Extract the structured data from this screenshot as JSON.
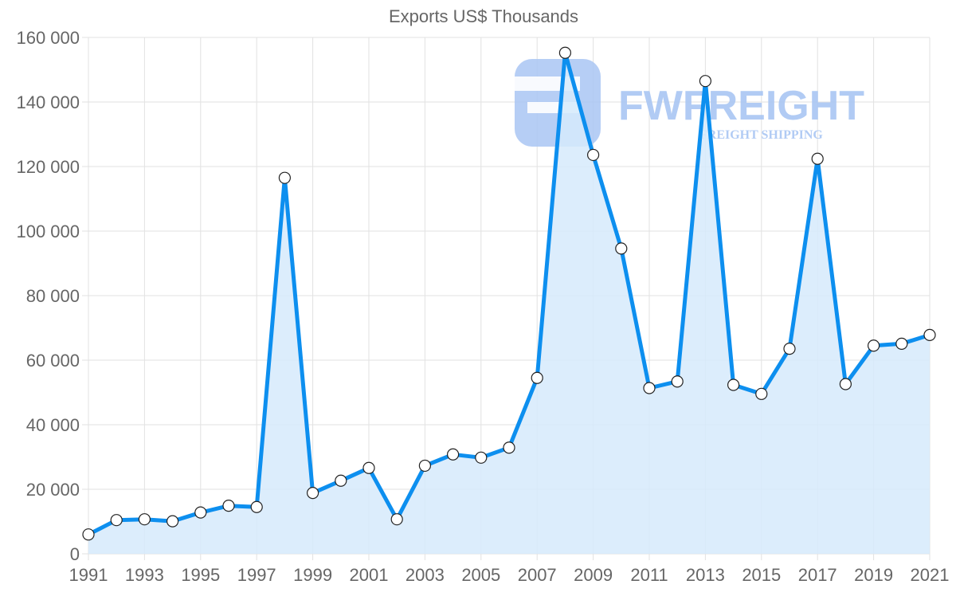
{
  "chart_data": {
    "type": "line",
    "title": "Exports US$ Thousands",
    "xlabel": "",
    "ylabel": "",
    "ylim": [
      0,
      160000
    ],
    "xlim": [
      1991,
      2021
    ],
    "grid": true,
    "legend": null,
    "fill": true,
    "y_ticks": [
      0,
      20000,
      40000,
      60000,
      80000,
      100000,
      120000,
      140000,
      160000
    ],
    "y_tick_labels": [
      "0",
      "20 000",
      "40 000",
      "60 000",
      "80 000",
      "100 000",
      "120 000",
      "140 000",
      "160 000"
    ],
    "x_tick_labels": [
      "1991",
      "1993",
      "1995",
      "1997",
      "1999",
      "2001",
      "2003",
      "2005",
      "2007",
      "2009",
      "2011",
      "2013",
      "2015",
      "2017",
      "2019",
      "2021"
    ],
    "x": [
      1991,
      1992,
      1993,
      1994,
      1995,
      1996,
      1997,
      1998,
      1999,
      2000,
      2001,
      2002,
      2003,
      2004,
      2005,
      2006,
      2007,
      2008,
      2009,
      2010,
      2011,
      2012,
      2013,
      2014,
      2015,
      2016,
      2017,
      2018,
      2019,
      2020,
      2021
    ],
    "series": [
      {
        "name": "Exports US$ Thousands",
        "color": "#0d8fef",
        "fill_color": "#d6eafc",
        "values": [
          6000,
          10450,
          10700,
          10100,
          12800,
          14900,
          14500,
          116500,
          18850,
          22650,
          26600,
          10700,
          27300,
          30800,
          29800,
          32900,
          54500,
          155250,
          123600,
          94600,
          51350,
          53400,
          146500,
          52350,
          49550,
          63550,
          122400,
          52600,
          64500,
          65100,
          67800
        ]
      }
    ]
  },
  "watermark": {
    "brand": "FWFREIGHT",
    "tagline": "FREIGHT SHIPPING",
    "color": "#a9c6f3"
  },
  "colors": {
    "grid": "#e2e2e2",
    "axis_text": "#666666",
    "point_fill": "#ffffff",
    "point_stroke": "#222222"
  }
}
